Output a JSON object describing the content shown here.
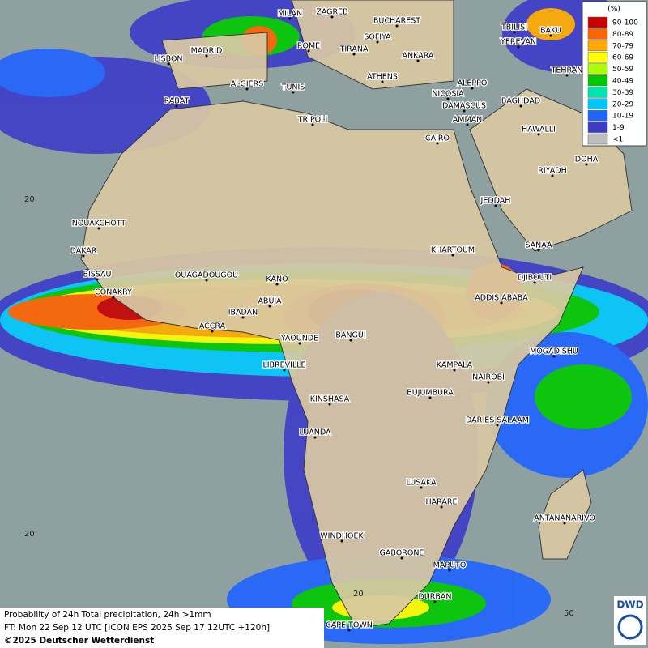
{
  "legend": {
    "title": "(%)",
    "items": [
      {
        "label": "90-100",
        "color": "#c80000"
      },
      {
        "label": "80-89",
        "color": "#ff6400"
      },
      {
        "label": "70-79",
        "color": "#ffaa00"
      },
      {
        "label": "60-69",
        "color": "#ffff00"
      },
      {
        "label": "50-59",
        "color": "#aaff00"
      },
      {
        "label": "40-49",
        "color": "#00c800"
      },
      {
        "label": "30-39",
        "color": "#00e6aa"
      },
      {
        "label": "20-29",
        "color": "#00c8ff"
      },
      {
        "label": "10-19",
        "color": "#1e64ff"
      },
      {
        "label": "1-9",
        "color": "#3c3cc8"
      },
      {
        "label": "<1",
        "color": "#bdbdbd"
      }
    ]
  },
  "cities": [
    "MILAN",
    "ZAGREB",
    "BUCHAREST",
    "MADRID",
    "ROME",
    "SOFIYA",
    "TBILISI",
    "BAKU",
    "LISBON",
    "TIRANA",
    "ANKARA",
    "YEREVAN",
    "TEHRAN",
    "ALGIERS",
    "TUNIS",
    "ATHENS",
    "ALEPPO",
    "RABAT",
    "NICOSIA",
    "BAGHDAD",
    "TRIPOLI",
    "DAMASCUS",
    "AMMAN",
    "HAWALLI",
    "CAIRO",
    "DOHA",
    "RIYADH",
    "JEDDAH",
    "NOUAKCHOTT",
    "KHARTOUM",
    "DAKAR",
    "SANAA",
    "BISSAU",
    "OUAGADOUGOU",
    "KANO",
    "DJIBOUTI",
    "CONAKRY",
    "ABUJA",
    "ADDIS ABABA",
    "IBADAN",
    "ACCRA",
    "YAOUNDE",
    "BANGUI",
    "MOGADISHU",
    "LIBREVILLE",
    "KAMPALA",
    "NAIROBI",
    "BUJUMBURA",
    "KINSHASA",
    "DAR ES SALAAM",
    "LUANDA",
    "LUSAKA",
    "HARARE",
    "ANTANANARIVO",
    "WINDHOEK",
    "GABORONE",
    "MAPUTO",
    "DURBAN",
    "CAPE TOWN"
  ],
  "grid_labels": [
    "20",
    "20",
    "20",
    "50"
  ],
  "footer": {
    "line1": "Probability of 24h Total precipitation, 24h >1mm",
    "line2": "FT: Mon 22 Sep 12 UTC [ICON EPS 2025 Sep 17 12UTC +120h]",
    "line3": "©2025 Deutscher Wetterdienst"
  },
  "logo": "DWD"
}
